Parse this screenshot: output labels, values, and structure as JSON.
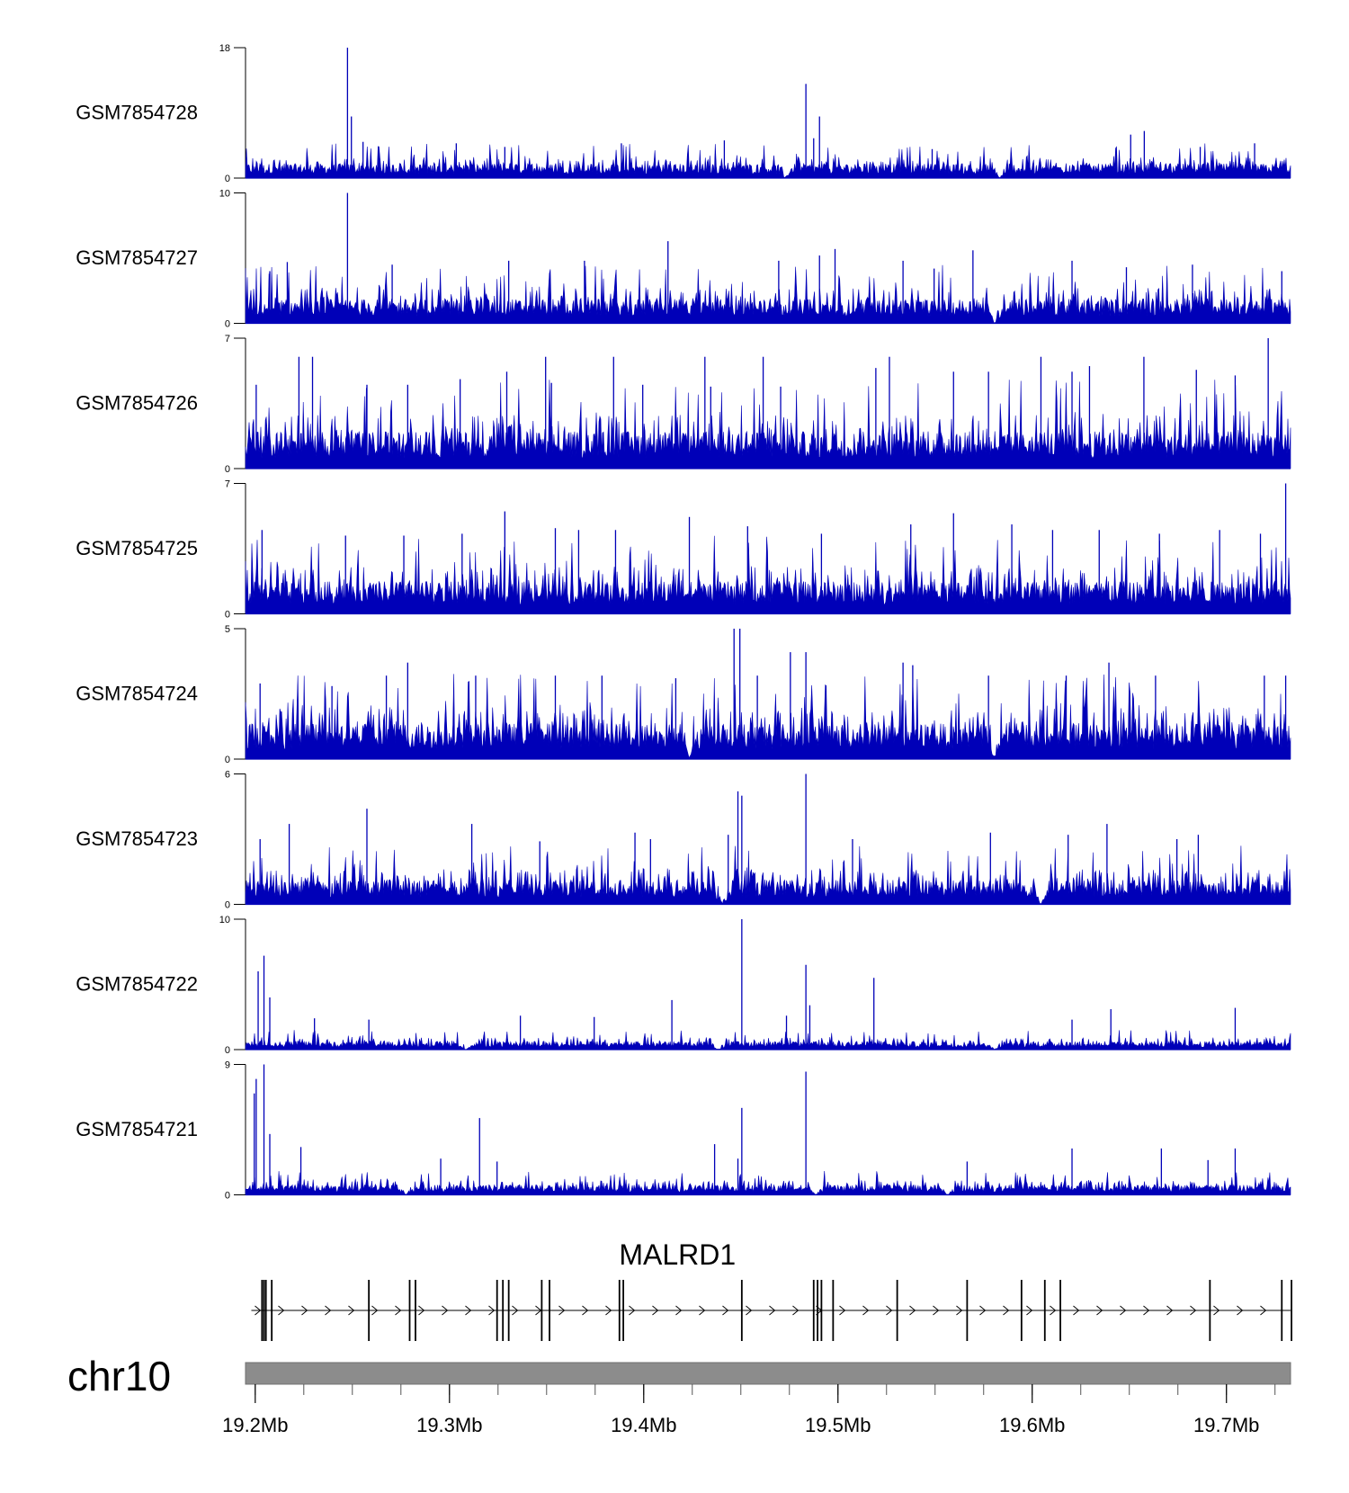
{
  "chart_data": {
    "type": "area",
    "region": {
      "chrom_label": "chr10",
      "start_mb": 19.195,
      "end_mb": 19.733
    },
    "x_axis": {
      "ticks": [
        19.2,
        19.3,
        19.4,
        19.5,
        19.6,
        19.7
      ],
      "tick_labels": [
        "19.2Mb",
        "19.3Mb",
        "19.4Mb",
        "19.5Mb",
        "19.6Mb",
        "19.7Mb"
      ]
    },
    "colors": {
      "signal": "#0000b8",
      "gene": "#000000",
      "ideogram": "#8c8c8c"
    },
    "tracks": [
      {
        "name": "GSM7854728",
        "ymin": 0,
        "ymax": 18,
        "ymin_label": "0",
        "ymax_label": "18",
        "base": 1.6,
        "peaks": [
          [
            19.2475,
            18
          ],
          [
            19.2495,
            8.5
          ],
          [
            19.4835,
            13
          ],
          [
            19.4905,
            8.5
          ],
          [
            19.4875,
            5.5
          ],
          [
            19.6577,
            6.5
          ],
          [
            19.6507,
            6
          ],
          [
            19.3035,
            4.8
          ],
          [
            19.3285,
            4.3
          ],
          [
            19.2555,
            5
          ],
          [
            19.5485,
            4
          ],
          [
            19.6865,
            4.3
          ],
          [
            19.7145,
            4.8
          ],
          [
            19.3885,
            4.8
          ],
          [
            19.4415,
            5.2
          ]
        ],
        "dips": [
          19.4725,
          19.5835
        ]
      },
      {
        "name": "GSM7854727",
        "ymin": 0,
        "ymax": 10,
        "ymin_label": "0",
        "ymax_label": "10",
        "base": 1.5,
        "peaks": [
          [
            19.2475,
            10
          ],
          [
            19.4125,
            6.3
          ],
          [
            19.4905,
            5.2
          ],
          [
            19.4985,
            5.7
          ],
          [
            19.5695,
            5.6
          ],
          [
            19.5335,
            4.8
          ],
          [
            19.4695,
            4.8
          ],
          [
            19.2165,
            4.7
          ],
          [
            19.2705,
            4.5
          ],
          [
            19.3305,
            4.8
          ],
          [
            19.3695,
            4.8
          ],
          [
            19.6205,
            4.8
          ],
          [
            19.6485,
            4.3
          ],
          [
            19.6825,
            4.5
          ],
          [
            19.2075,
            4
          ],
          [
            19.5495,
            4.2
          ],
          [
            19.7285,
            4
          ]
        ],
        "dips": [
          19.5805
        ]
      },
      {
        "name": "GSM7854726",
        "ymin": 0,
        "ymax": 7,
        "ymin_label": "0",
        "ymax_label": "7",
        "base": 1.6,
        "peaks": [
          [
            19.7215,
            7
          ],
          [
            19.2225,
            6
          ],
          [
            19.2295,
            6
          ],
          [
            19.3495,
            6
          ],
          [
            19.3845,
            6
          ],
          [
            19.4315,
            6
          ],
          [
            19.4615,
            6
          ],
          [
            19.5265,
            6
          ],
          [
            19.6045,
            6
          ],
          [
            19.6575,
            6
          ],
          [
            19.5195,
            5.4
          ],
          [
            19.2005,
            4.5
          ],
          [
            19.2575,
            4.5
          ],
          [
            19.2785,
            4.5
          ],
          [
            19.3055,
            4.8
          ],
          [
            19.3295,
            5.2
          ],
          [
            19.3525,
            4.6
          ],
          [
            19.3995,
            4.5
          ],
          [
            19.4345,
            4.4
          ],
          [
            19.4705,
            4.4
          ],
          [
            19.5595,
            5.2
          ],
          [
            19.5775,
            5.2
          ],
          [
            19.6205,
            5.2
          ],
          [
            19.6295,
            5.5
          ],
          [
            19.6845,
            5.3
          ],
          [
            19.7045,
            5
          ]
        ],
        "dips": []
      },
      {
        "name": "GSM7854725",
        "ymin": 0,
        "ymax": 7,
        "ymin_label": "0",
        "ymax_label": "7",
        "base": 1.4,
        "peaks": [
          [
            19.7305,
            7
          ],
          [
            19.3285,
            5.5
          ],
          [
            19.4235,
            5.2
          ],
          [
            19.5595,
            5.4
          ],
          [
            19.5375,
            4.8
          ],
          [
            19.5895,
            4.8
          ],
          [
            19.2035,
            4.5
          ],
          [
            19.2465,
            4.2
          ],
          [
            19.2765,
            4.2
          ],
          [
            19.3065,
            4.3
          ],
          [
            19.3545,
            4.6
          ],
          [
            19.3665,
            4.5
          ],
          [
            19.3855,
            4.5
          ],
          [
            19.4535,
            4.7
          ],
          [
            19.4915,
            4.3
          ],
          [
            19.6105,
            4.5
          ],
          [
            19.6345,
            4.5
          ],
          [
            19.6655,
            4.3
          ],
          [
            19.6965,
            4.5
          ],
          [
            19.7175,
            4.3
          ]
        ],
        "dips": []
      },
      {
        "name": "GSM7854724",
        "ymin": 0,
        "ymax": 5,
        "ymin_label": "0",
        "ymax_label": "5",
        "base": 1.1,
        "peaks": [
          [
            19.4465,
            5
          ],
          [
            19.4495,
            5
          ],
          [
            19.4755,
            4.1
          ],
          [
            19.4835,
            4.1
          ],
          [
            19.5335,
            3.7
          ],
          [
            19.5385,
            3.6
          ],
          [
            19.6395,
            3.7
          ],
          [
            19.2785,
            3.7
          ],
          [
            19.2675,
            3.2
          ],
          [
            19.3135,
            3.2
          ],
          [
            19.3545,
            3.2
          ],
          [
            19.3785,
            3.2
          ],
          [
            19.4165,
            3.1
          ],
          [
            19.4585,
            3.2
          ],
          [
            19.5775,
            3.2
          ],
          [
            19.6175,
            3.2
          ],
          [
            19.6635,
            3.2
          ],
          [
            19.7195,
            3.2
          ],
          [
            19.7305,
            3.2
          ],
          [
            19.2025,
            2.9
          ],
          [
            19.2395,
            2.8
          ]
        ],
        "dips": [
          19.4235,
          19.5805
        ]
      },
      {
        "name": "GSM7854723",
        "ymin": 0,
        "ymax": 6,
        "ymin_label": "0",
        "ymax_label": "6",
        "base": 0.9,
        "peaks": [
          [
            19.4835,
            6
          ],
          [
            19.4485,
            5.2
          ],
          [
            19.4505,
            5
          ],
          [
            19.2575,
            4.4
          ],
          [
            19.6385,
            3.7
          ],
          [
            19.2175,
            3.7
          ],
          [
            19.3115,
            3.7
          ],
          [
            19.4435,
            3.2
          ],
          [
            19.3955,
            3.3
          ],
          [
            19.5785,
            3.3
          ],
          [
            19.6185,
            3.2
          ],
          [
            19.6855,
            3.2
          ],
          [
            19.2025,
            3
          ],
          [
            19.3465,
            2.9
          ],
          [
            19.4035,
            3
          ],
          [
            19.5075,
            3
          ],
          [
            19.6745,
            3
          ]
        ],
        "dips": [
          19.4405,
          19.6045
        ]
      },
      {
        "name": "GSM7854722",
        "ymin": 0,
        "ymax": 10,
        "ymin_label": "0",
        "ymax_label": "10",
        "base": 0.5,
        "peaks": [
          [
            19.4505,
            10
          ],
          [
            19.2045,
            7.2
          ],
          [
            19.2015,
            6
          ],
          [
            19.2075,
            4
          ],
          [
            19.4835,
            6.5
          ],
          [
            19.5185,
            5.5
          ],
          [
            19.4145,
            3.8
          ],
          [
            19.4855,
            3.4
          ],
          [
            19.6405,
            3.1
          ],
          [
            19.7045,
            3.2
          ],
          [
            19.4735,
            2.6
          ],
          [
            19.3365,
            2.6
          ],
          [
            19.3745,
            2.5
          ],
          [
            19.2305,
            2.4
          ],
          [
            19.2585,
            2.3
          ],
          [
            19.6205,
            2.3
          ]
        ],
        "dips": [
          19.3085,
          19.4385,
          19.5805
        ]
      },
      {
        "name": "GSM7854721",
        "ymin": 0,
        "ymax": 9,
        "ymin_label": "0",
        "ymax_label": "9",
        "base": 0.55,
        "peaks": [
          [
            19.2045,
            9
          ],
          [
            19.2005,
            8
          ],
          [
            19.1995,
            7
          ],
          [
            19.2075,
            4.2
          ],
          [
            19.4835,
            8.5
          ],
          [
            19.4505,
            6
          ],
          [
            19.3155,
            5.3
          ],
          [
            19.2235,
            3.3
          ],
          [
            19.4365,
            3.5
          ],
          [
            19.4485,
            2.5
          ],
          [
            19.6205,
            3.2
          ],
          [
            19.6665,
            3.2
          ],
          [
            19.7045,
            3.2
          ],
          [
            19.2955,
            2.5
          ],
          [
            19.3245,
            2.3
          ],
          [
            19.5665,
            2.3
          ],
          [
            19.6905,
            2.4
          ]
        ],
        "dips": [
          19.2775,
          19.4885,
          19.5565
        ]
      }
    ],
    "gene_track": {
      "label": "MALRD1",
      "strand": "+",
      "start_mb": 19.198,
      "end_mb": 19.733,
      "exons_mb": [
        19.2035,
        19.2045,
        19.2055,
        19.2085,
        19.2585,
        19.2795,
        19.2825,
        19.3245,
        19.3275,
        19.3305,
        19.3475,
        19.3515,
        19.3875,
        19.3895,
        19.4505,
        19.4875,
        19.4895,
        19.4915,
        19.4975,
        19.5305,
        19.5665,
        19.5945,
        19.6065,
        19.6145,
        19.6915,
        19.7285,
        19.7335
      ]
    }
  }
}
